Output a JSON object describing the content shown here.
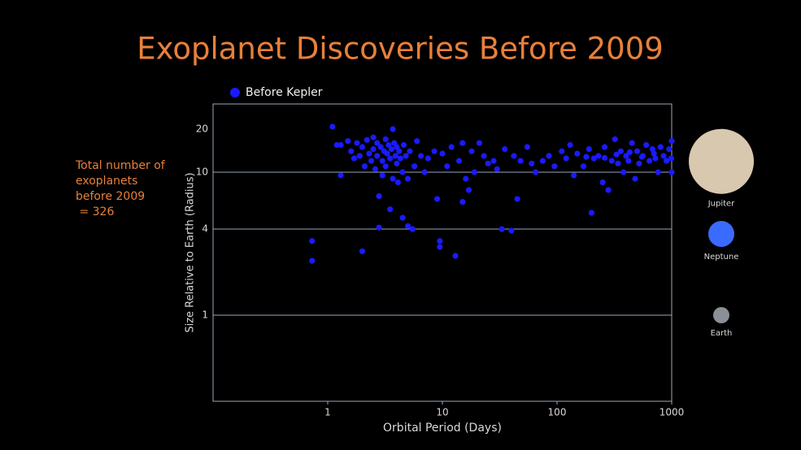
{
  "chart_data": {
    "type": "scatter",
    "title": "Exoplanet Discoveries Before 2009",
    "x_label": "Orbital Period (Days)",
    "y_label": "Size Relative to Earth (Radius)",
    "annotation": [
      "Total number of",
      "exoplanets",
      "before 2009",
      " = 326"
    ],
    "log_x": true,
    "log_y": true,
    "xlim": [
      0.1,
      1000
    ],
    "ylim": [
      0.25,
      30
    ],
    "xticks": [
      1,
      10,
      100,
      1000
    ],
    "yticks": [
      1,
      4,
      10,
      20
    ],
    "ygrid": [
      1,
      4,
      10
    ],
    "legend": "top-left",
    "reference_planets": [
      {
        "name": "Jupiter",
        "radius": 11.9,
        "color": "#d8c8b0"
      },
      {
        "name": "Neptune",
        "radius": 3.7,
        "color": "#3a6bff"
      },
      {
        "name": "Earth",
        "radius": 1,
        "color": "#8a8f98"
      }
    ],
    "series": [
      {
        "name": "Before Kepler",
        "color": "#1a1aff",
        "x": [
          0.73,
          0.73,
          1.1,
          1.2,
          1.3,
          1.3,
          1.5,
          1.6,
          1.7,
          1.8,
          1.9,
          2.0,
          2.0,
          2.1,
          2.2,
          2.3,
          2.4,
          2.5,
          2.5,
          2.6,
          2.7,
          2.7,
          2.8,
          2.8,
          2.9,
          3.0,
          3.0,
          3.1,
          3.2,
          3.2,
          3.3,
          3.4,
          3.5,
          3.5,
          3.6,
          3.7,
          3.7,
          3.8,
          3.9,
          4.0,
          4.0,
          4.1,
          4.2,
          4.3,
          4.5,
          4.5,
          4.6,
          4.8,
          5.0,
          5.0,
          5.2,
          5.5,
          5.7,
          6,
          6.5,
          7,
          7.5,
          8.5,
          9,
          9.5,
          9.5,
          10,
          11,
          12,
          13,
          14,
          15,
          15,
          16,
          17,
          18,
          19,
          21,
          23,
          25,
          28,
          30,
          33,
          35,
          40,
          42,
          45,
          48,
          55,
          60,
          65,
          75,
          85,
          95,
          110,
          120,
          130,
          140,
          150,
          170,
          190,
          200,
          210,
          230,
          250,
          260,
          280,
          300,
          320,
          340,
          360,
          380,
          400,
          420,
          450,
          480,
          500,
          520,
          560,
          600,
          640,
          680,
          720,
          760,
          800,
          850,
          900,
          950,
          1000,
          1000,
          990,
          700,
          550,
          430,
          330,
          260,
          180
        ],
        "values": [
          3.3,
          2.4,
          20.8,
          15.5,
          15.5,
          9.5,
          16.5,
          14,
          12.5,
          16,
          13,
          2.8,
          15,
          11,
          16.8,
          13.5,
          12,
          17.5,
          14.5,
          10.5,
          13,
          16,
          4.1,
          6.8,
          15,
          12,
          9.5,
          14,
          17,
          11,
          13.5,
          15.5,
          12.5,
          5.5,
          14.5,
          20,
          9,
          16,
          13,
          11.5,
          15,
          8.5,
          14,
          12.5,
          4.8,
          10,
          15.5,
          13,
          4.2,
          9,
          14,
          4.0,
          11,
          16.5,
          13,
          10,
          12.5,
          14,
          6.5,
          3.0,
          3.3,
          13.5,
          11,
          15,
          2.6,
          12,
          16,
          6.2,
          9,
          7.5,
          14,
          10,
          16,
          13,
          11.5,
          12,
          10.5,
          4.0,
          14.5,
          3.9,
          13,
          6.5,
          12,
          15,
          11.5,
          10,
          12,
          13,
          11,
          14,
          12.5,
          15.5,
          9.5,
          13.5,
          11,
          14.5,
          5.2,
          12.5,
          13,
          8.5,
          15,
          7.5,
          12,
          17,
          11.5,
          14,
          10,
          13,
          12,
          16,
          9,
          14,
          11.5,
          13,
          15.5,
          12,
          14.5,
          12.5,
          10,
          15,
          13,
          12,
          14.5,
          16.5,
          10,
          12.5,
          13.5,
          12.8,
          13.8,
          13.3,
          12.6,
          12.8
        ]
      }
    ]
  }
}
